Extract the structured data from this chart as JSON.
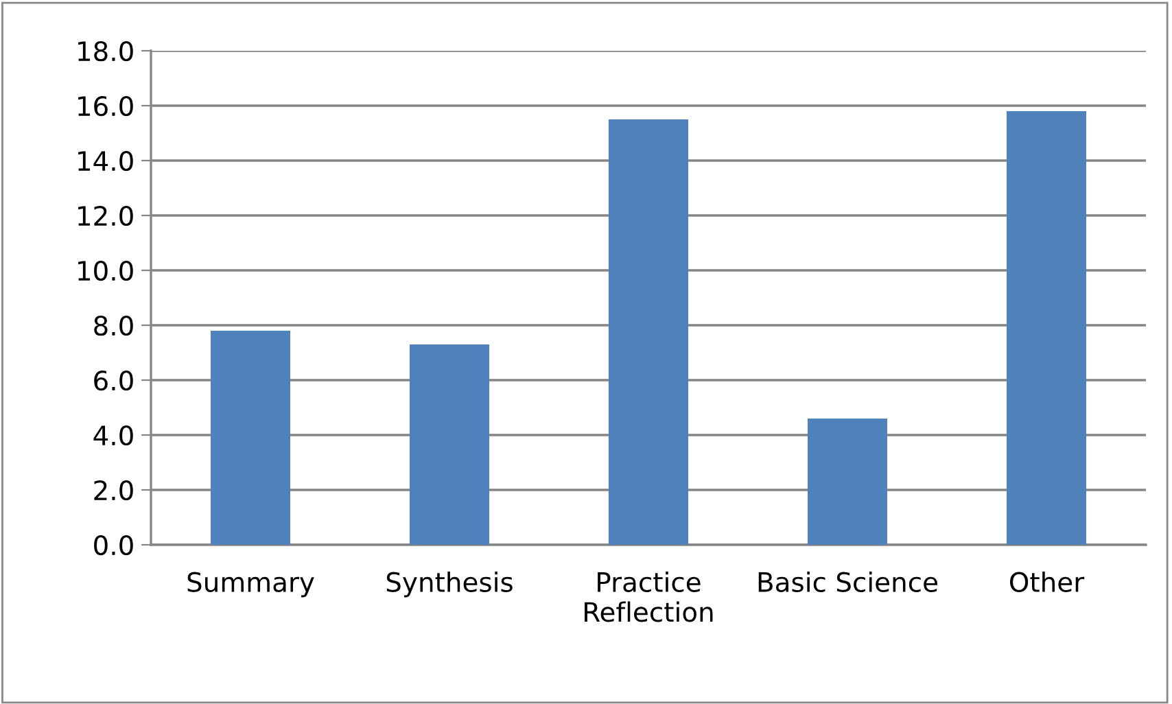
{
  "chart_data": {
    "type": "bar",
    "categories": [
      "Summary",
      "Synthesis",
      "Practice\nReflection",
      "Basic Science",
      "Other"
    ],
    "values": [
      7.8,
      7.3,
      15.5,
      4.6,
      15.8
    ],
    "color": "#4f81bd",
    "ylim": [
      0,
      18
    ],
    "yticks": [
      {
        "value": 0,
        "label": "0.0"
      },
      {
        "value": 2,
        "label": "2.0"
      },
      {
        "value": 4,
        "label": "4.0"
      },
      {
        "value": 6,
        "label": "6.0"
      },
      {
        "value": 8,
        "label": "8.0"
      },
      {
        "value": 10,
        "label": "10.0"
      },
      {
        "value": 12,
        "label": "12.0"
      },
      {
        "value": 14,
        "label": "14.0"
      },
      {
        "value": 16,
        "label": "16.0"
      },
      {
        "value": 18,
        "label": "18.0"
      }
    ],
    "grid": "y"
  }
}
